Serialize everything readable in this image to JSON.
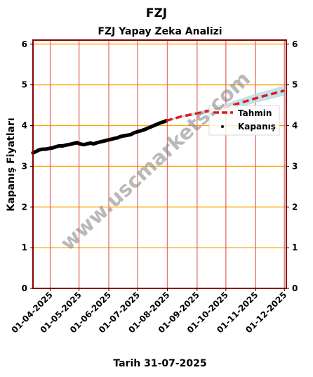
{
  "figure_title": "FZJ",
  "footer_text": "Tarih 31-07-2025",
  "watermark": "www.uscmarkets.com",
  "colors": {
    "background": "#ffffff",
    "frame": "#8b0000",
    "hgrid": "#ffa500",
    "vgrid": "#e06060",
    "closing": "#000000",
    "forecast": "#e31a1c",
    "band": "#add8e6",
    "watermark": "#808080"
  },
  "chart_data": {
    "type": "line",
    "title": "FZJ Yapay Zeka Analizi",
    "xlabel": "",
    "ylabel": "Kapanış Fiyatları",
    "ylim": [
      0,
      6.1
    ],
    "yticks": [
      0,
      1,
      2,
      3,
      4,
      5,
      6
    ],
    "xlim": [
      "2025-03-14",
      "2025-12-03"
    ],
    "xticks": [
      "01-04-2025",
      "01-05-2025",
      "01-06-2025",
      "01-07-2025",
      "01-08-2025",
      "01-09-2025",
      "01-10-2025",
      "01-11-2025",
      "01-12-2025"
    ],
    "grid": true,
    "legend_position": "right",
    "legend": [
      "Tahmin",
      "Kapanış"
    ],
    "series": [
      {
        "name": "Kapanış",
        "style": "scatter",
        "x": [
          "2025-03-14",
          "2025-03-17",
          "2025-03-20",
          "2025-03-24",
          "2025-03-27",
          "2025-03-31",
          "2025-04-03",
          "2025-04-07",
          "2025-04-10",
          "2025-04-14",
          "2025-04-17",
          "2025-04-22",
          "2025-04-25",
          "2025-04-29",
          "2025-05-02",
          "2025-05-06",
          "2025-05-09",
          "2025-05-13",
          "2025-05-16",
          "2025-05-20",
          "2025-05-23",
          "2025-05-27",
          "2025-05-30",
          "2025-06-03",
          "2025-06-06",
          "2025-06-10",
          "2025-06-13",
          "2025-06-17",
          "2025-06-20",
          "2025-06-24",
          "2025-06-27",
          "2025-07-01",
          "2025-07-04",
          "2025-07-08",
          "2025-07-11",
          "2025-07-15",
          "2025-07-18",
          "2025-07-22",
          "2025-07-25",
          "2025-07-29",
          "2025-07-31"
        ],
        "y": [
          3.33,
          3.36,
          3.4,
          3.42,
          3.42,
          3.44,
          3.45,
          3.48,
          3.5,
          3.5,
          3.52,
          3.54,
          3.56,
          3.58,
          3.55,
          3.53,
          3.55,
          3.57,
          3.55,
          3.58,
          3.6,
          3.62,
          3.64,
          3.66,
          3.68,
          3.7,
          3.73,
          3.75,
          3.76,
          3.78,
          3.82,
          3.85,
          3.87,
          3.9,
          3.93,
          3.97,
          4.0,
          4.04,
          4.07,
          4.1,
          4.12
        ]
      },
      {
        "name": "Tahmin",
        "style": "dashed",
        "x": [
          "2025-07-31",
          "2025-08-15",
          "2025-09-01",
          "2025-09-15",
          "2025-10-01",
          "2025-10-15",
          "2025-11-01",
          "2025-11-15",
          "2025-12-01"
        ],
        "y": [
          4.12,
          4.22,
          4.3,
          4.37,
          4.45,
          4.55,
          4.67,
          4.76,
          4.86
        ],
        "band_upper": [
          4.14,
          4.25,
          4.34,
          4.43,
          4.53,
          4.65,
          4.78,
          4.88,
          4.98
        ],
        "band_lower": [
          4.1,
          4.19,
          4.26,
          4.31,
          4.37,
          4.45,
          4.56,
          4.64,
          4.74
        ]
      }
    ]
  }
}
